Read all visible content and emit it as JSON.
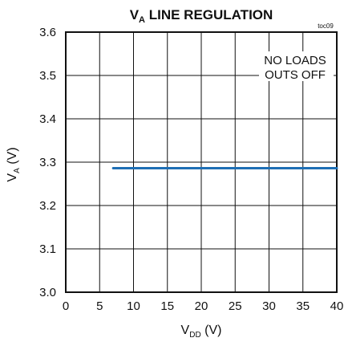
{
  "chart_data": {
    "type": "line",
    "title": {
      "prefix": "V",
      "subscript": "A",
      "suffix": " LINE REGULATION"
    },
    "figure_code": "toc09",
    "xlabel": {
      "prefix": "V",
      "subscript": "DD",
      "suffix": " (V)"
    },
    "ylabel": {
      "prefix": "V",
      "subscript": "A",
      "suffix": " (V)"
    },
    "xlim": [
      0,
      40
    ],
    "ylim": [
      3.0,
      3.6
    ],
    "x_ticks": [
      0,
      5,
      10,
      15,
      20,
      25,
      30,
      35,
      40
    ],
    "x_tick_labels": [
      "0",
      "5",
      "10",
      "15",
      "20",
      "25",
      "30",
      "35",
      "40"
    ],
    "y_ticks": [
      3.0,
      3.1,
      3.2,
      3.3,
      3.4,
      3.5,
      3.6
    ],
    "y_tick_labels": [
      "3.0",
      "3.1",
      "3.2",
      "3.3",
      "3.4",
      "3.5",
      "3.6"
    ],
    "grid": true,
    "annotations": [
      "NO LOADS",
      "OUTS OFF"
    ],
    "series": [
      {
        "color": "#1f6fb5",
        "x": [
          7,
          10,
          15,
          20,
          25,
          30,
          35,
          40
        ],
        "y": [
          3.286,
          3.286,
          3.286,
          3.286,
          3.286,
          3.286,
          3.286,
          3.286
        ]
      }
    ]
  }
}
